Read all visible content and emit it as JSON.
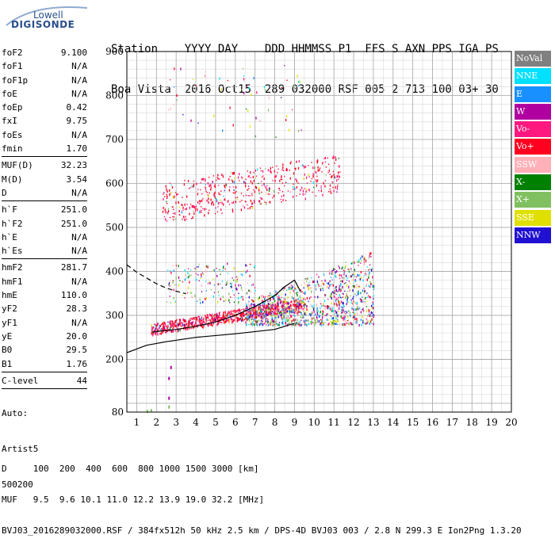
{
  "logo": {
    "top": "Lowell",
    "bottom": "DIGISONDE"
  },
  "header": {
    "line1": "Station    YYYY DAY    DDD HHMMSS P1  FFS S AXN PPS IGA PS",
    "line2": "Boa Vista  2016 Oct15  289 032000 RSF 005 2 713 100 03+ 30"
  },
  "params": [
    {
      "name": "foF2",
      "value": "9.100"
    },
    {
      "name": "foF1",
      "value": "N/A"
    },
    {
      "name": "foF1p",
      "value": "N/A"
    },
    {
      "name": "foE",
      "value": "N/A"
    },
    {
      "name": "foEp",
      "value": "0.42"
    },
    {
      "name": "fxI",
      "value": "9.75"
    },
    {
      "name": "foEs",
      "value": "N/A"
    },
    {
      "name": "fmin",
      "value": "1.70"
    },
    {
      "sep": true
    },
    {
      "name": "MUF(D)",
      "value": "32.23"
    },
    {
      "name": "M(D)",
      "value": "3.54"
    },
    {
      "name": "D",
      "value": "N/A"
    },
    {
      "sep": true
    },
    {
      "name": "h`F",
      "value": "251.0"
    },
    {
      "name": "h`F2",
      "value": "251.0"
    },
    {
      "name": "h`E",
      "value": "N/A"
    },
    {
      "name": "h`Es",
      "value": "N/A"
    },
    {
      "sep": true
    },
    {
      "name": "hmF2",
      "value": "281.7"
    },
    {
      "name": "hmF1",
      "value": "N/A"
    },
    {
      "name": "hmE",
      "value": "110.0"
    },
    {
      "name": "yF2",
      "value": "28.3"
    },
    {
      "name": "yF1",
      "value": "N/A"
    },
    {
      "name": "yE",
      "value": "20.0"
    },
    {
      "name": "B0",
      "value": "29.5"
    },
    {
      "name": "B1",
      "value": "1.76"
    },
    {
      "sep": true
    },
    {
      "name": "C-level",
      "value": "44"
    },
    {
      "sep": true
    }
  ],
  "auto": {
    "line1": "Auto:",
    "line2": "Artist5",
    "line3": "500200"
  },
  "footer": {
    "line1": "D     100  200  400  600  800 1000 1500 3000 [km]",
    "line2": "MUF   9.5  9.6 10.1 11.0 12.2 13.9 19.0 32.2 [MHz]",
    "line3": "BVJ03_2016289032000.RSF / 384fx512h 50 kHz 2.5 km / DPS-4D BVJ03 003 / 2.8 N 299.3 E Ion2Png 1.3.20"
  },
  "legend": [
    {
      "label": "NoVal",
      "bg": "#808080",
      "fg": "#ffffff"
    },
    {
      "label": "NNE",
      "bg": "#00e0ff",
      "fg": "#ffffff"
    },
    {
      "label": "E",
      "bg": "#1890ff",
      "fg": "#ffffff"
    },
    {
      "label": "W",
      "bg": "#b000a0",
      "fg": "#ffffff"
    },
    {
      "label": "Vo-",
      "bg": "#ff1880",
      "fg": "#ffffff"
    },
    {
      "label": "Vo+",
      "bg": "#ff0020",
      "fg": "#ffffff"
    },
    {
      "label": "SSW",
      "bg": "#ffb0b8",
      "fg": "#ffffff"
    },
    {
      "label": "X-",
      "bg": "#008000",
      "fg": "#ffffff"
    },
    {
      "label": "X+",
      "bg": "#80c060",
      "fg": "#ffffff"
    },
    {
      "label": "SSE",
      "bg": "#e0e000",
      "fg": "#ffffff"
    },
    {
      "label": "NNW",
      "bg": "#2010d0",
      "fg": "#ffffff"
    }
  ],
  "chart_data": {
    "type": "scatter",
    "xlim": [
      0.5,
      20
    ],
    "ylim": [
      80,
      900
    ],
    "x_ticks": [
      1,
      2,
      3,
      4,
      5,
      6,
      7,
      8,
      9,
      10,
      11,
      12,
      13,
      14,
      15,
      16,
      17,
      18,
      19,
      20
    ],
    "y_ticks": [
      80,
      200,
      300,
      400,
      500,
      600,
      700,
      800,
      900
    ],
    "grid": true,
    "traces": [
      {
        "desc": "profile-solid",
        "style": "solid",
        "x": [
          0.5,
          1.5,
          2.5,
          4,
          6,
          8,
          9
        ],
        "y": [
          215,
          232,
          240,
          250,
          258,
          268,
          282
        ]
      },
      {
        "desc": "profile-dashed",
        "style": "dashed",
        "x": [
          0.5,
          1.0,
          1.5,
          2.0,
          2.5,
          3.0,
          3.5
        ],
        "y": [
          415,
          398,
          385,
          372,
          362,
          355,
          349
        ]
      },
      {
        "desc": "trace-center",
        "style": "solid",
        "x": [
          1.8,
          3,
          4,
          5,
          6,
          7,
          8,
          8.5,
          9,
          9.3
        ],
        "y": [
          262,
          268,
          275,
          285,
          300,
          320,
          345,
          365,
          380,
          355
        ]
      }
    ],
    "clusters": [
      {
        "desc": "F2 echo",
        "x": [
          1.7,
          9.5
        ],
        "y": [
          255,
          330
        ],
        "rise": 60
      },
      {
        "desc": "F2 spread",
        "x": [
          6.5,
          13
        ],
        "y": [
          280,
          450
        ],
        "rise": 0
      },
      {
        "desc": "2nd hop",
        "x": [
          2.3,
          11.3
        ],
        "y": [
          510,
          600
        ],
        "rise": 70
      },
      {
        "desc": "upper sparse",
        "x": [
          2.5,
          9.5
        ],
        "y": [
          700,
          870
        ],
        "rise": 0
      },
      {
        "desc": "low band",
        "x": [
          2.5,
          7
        ],
        "y": [
          330,
          420
        ],
        "rise": 0
      }
    ]
  }
}
